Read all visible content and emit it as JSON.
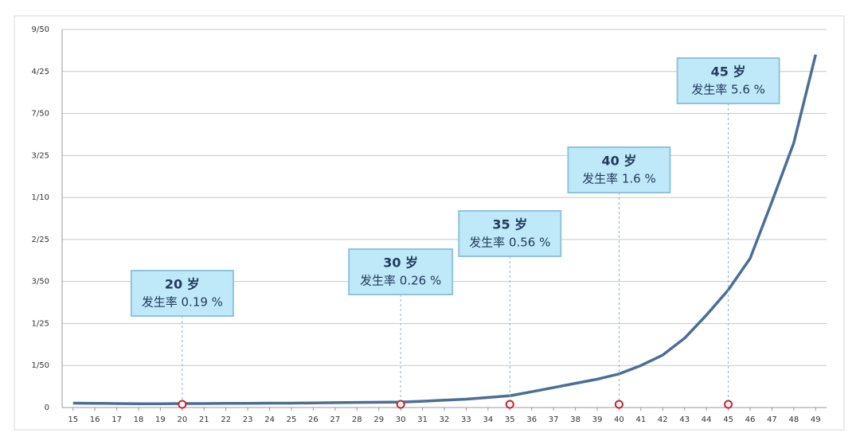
{
  "chart_data": {
    "type": "line",
    "x": [
      15,
      16,
      17,
      18,
      19,
      20,
      21,
      22,
      23,
      24,
      25,
      26,
      27,
      28,
      29,
      30,
      31,
      32,
      33,
      34,
      35,
      36,
      37,
      38,
      39,
      40,
      41,
      42,
      43,
      44,
      45,
      46,
      47,
      48,
      49
    ],
    "series": [
      {
        "name": null,
        "color": "#4a6e95",
        "values": [
          0.0021,
          0.002,
          0.0019,
          0.0018,
          0.0018,
          0.0019,
          0.0019,
          0.002,
          0.002,
          0.0021,
          0.0021,
          0.0022,
          0.0023,
          0.0024,
          0.0025,
          0.0026,
          0.003,
          0.0035,
          0.004,
          0.0048,
          0.0056,
          0.0075,
          0.0095,
          0.0115,
          0.0135,
          0.016,
          0.02,
          0.025,
          0.033,
          0.044,
          0.056,
          0.071,
          0.098,
          0.126,
          0.168
        ]
      }
    ],
    "xlim": [
      14.5,
      49.5
    ],
    "xticks": [
      15,
      16,
      17,
      18,
      19,
      20,
      21,
      22,
      23,
      24,
      25,
      26,
      27,
      28,
      29,
      30,
      31,
      32,
      33,
      34,
      35,
      36,
      37,
      38,
      39,
      40,
      41,
      42,
      43,
      44,
      45,
      46,
      47,
      48,
      49
    ],
    "ylim": [
      0,
      0.18
    ],
    "yticks": [
      0,
      {
        "value": 0.02,
        "label": "1/50"
      },
      {
        "value": 0.04,
        "label": "1/25"
      },
      {
        "value": 0.06,
        "label": "3/50"
      },
      {
        "value": 0.08,
        "label": "2/25"
      },
      {
        "value": 0.1,
        "label": "1/10"
      },
      {
        "value": 0.12,
        "label": "3/25"
      },
      {
        "value": 0.14,
        "label": "7/50"
      },
      {
        "value": 0.16,
        "label": "4/25"
      },
      {
        "value": 0.18,
        "label": "9/50"
      }
    ],
    "grid": true,
    "annotations": [
      {
        "x": 20,
        "title": "20 岁",
        "text": "发生率 0.19 %"
      },
      {
        "x": 30,
        "title": "30 岁",
        "text": "发生率 0.26 %"
      },
      {
        "x": 35,
        "title": "35 岁",
        "text": "发生率 0.56 %"
      },
      {
        "x": 40,
        "title": "40 岁",
        "text": "发生率 1.6 %"
      },
      {
        "x": 45,
        "title": "45 岁",
        "text": "发生率 5.6 %"
      }
    ]
  }
}
